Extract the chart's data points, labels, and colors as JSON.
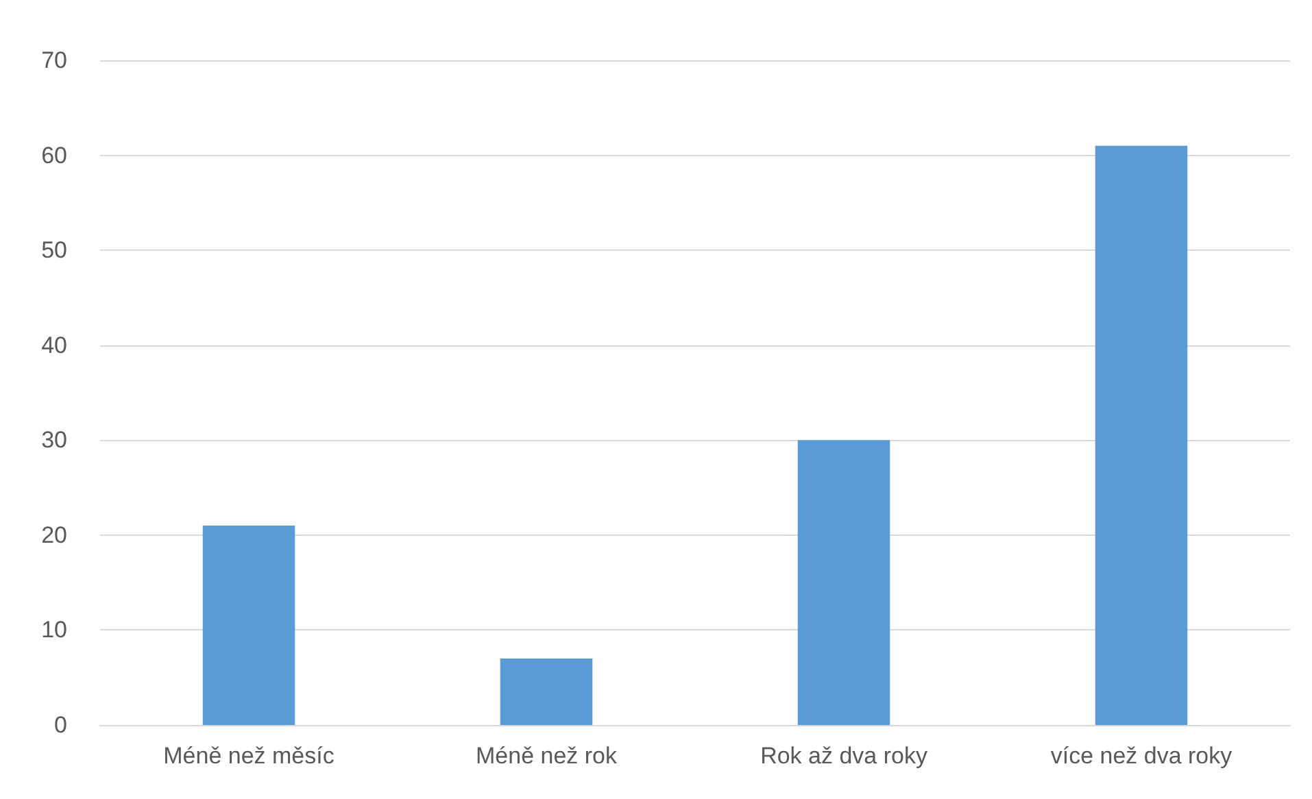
{
  "chart_data": {
    "type": "bar",
    "categories": [
      "Méně než měsíc",
      "Méně než rok",
      "Rok až dva roky",
      "více než dva roky"
    ],
    "values": [
      21,
      7,
      30,
      61
    ],
    "color": "#5b9bd5",
    "ylim": [
      0,
      70
    ],
    "yticks": [
      0,
      10,
      20,
      30,
      40,
      50,
      60,
      70
    ],
    "grid": "y"
  }
}
